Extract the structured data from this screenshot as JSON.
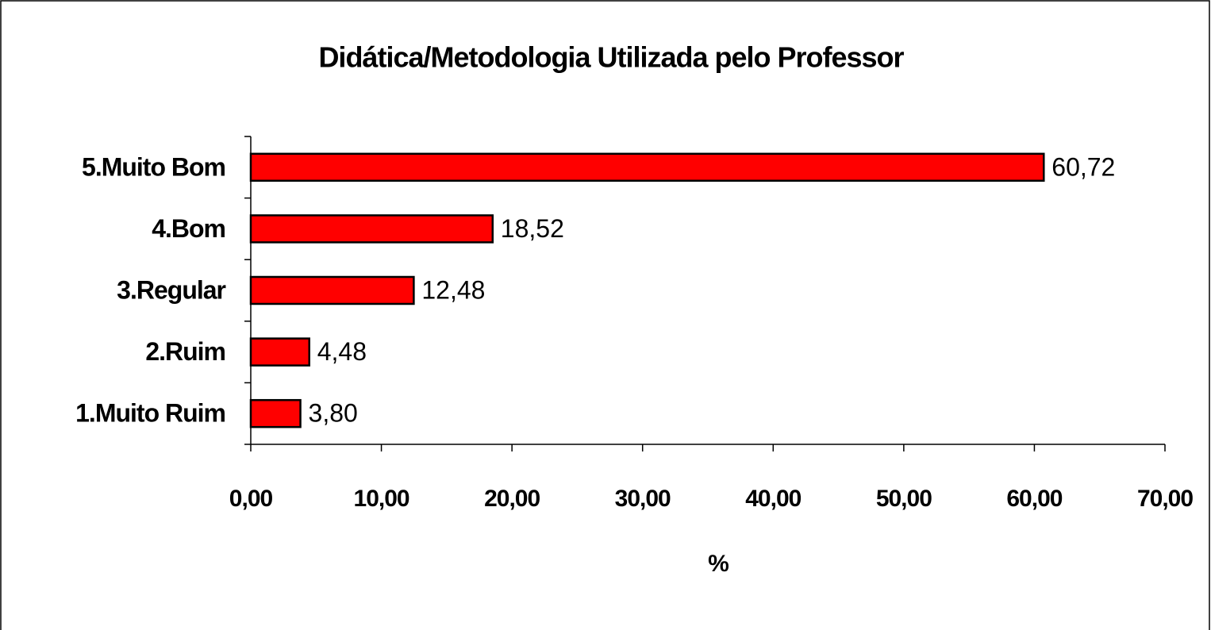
{
  "chart_data": {
    "type": "bar",
    "orientation": "horizontal",
    "title": "Didática/Metodologia Utilizada pelo Professor",
    "categories": [
      "5.Muito Bom",
      "4.Bom",
      "3.Regular",
      "2.Ruim",
      "1.Muito Ruim"
    ],
    "values": [
      60.72,
      18.52,
      12.48,
      4.48,
      3.8
    ],
    "value_labels": [
      "60,72",
      "18,52",
      "12,48",
      "4,48",
      "3,80"
    ],
    "color": "#ff0000",
    "xlabel": "%",
    "xlim": [
      0,
      70
    ],
    "xticks": [
      {
        "value": 0,
        "label": "0,00"
      },
      {
        "value": 10,
        "label": "10,00"
      },
      {
        "value": 20,
        "label": "20,00"
      },
      {
        "value": 30,
        "label": "30,00"
      },
      {
        "value": 40,
        "label": "40,00"
      },
      {
        "value": 50,
        "label": "50,00"
      },
      {
        "value": 60,
        "label": "60,00"
      },
      {
        "value": 70,
        "label": "70,00"
      }
    ],
    "grid": false
  }
}
